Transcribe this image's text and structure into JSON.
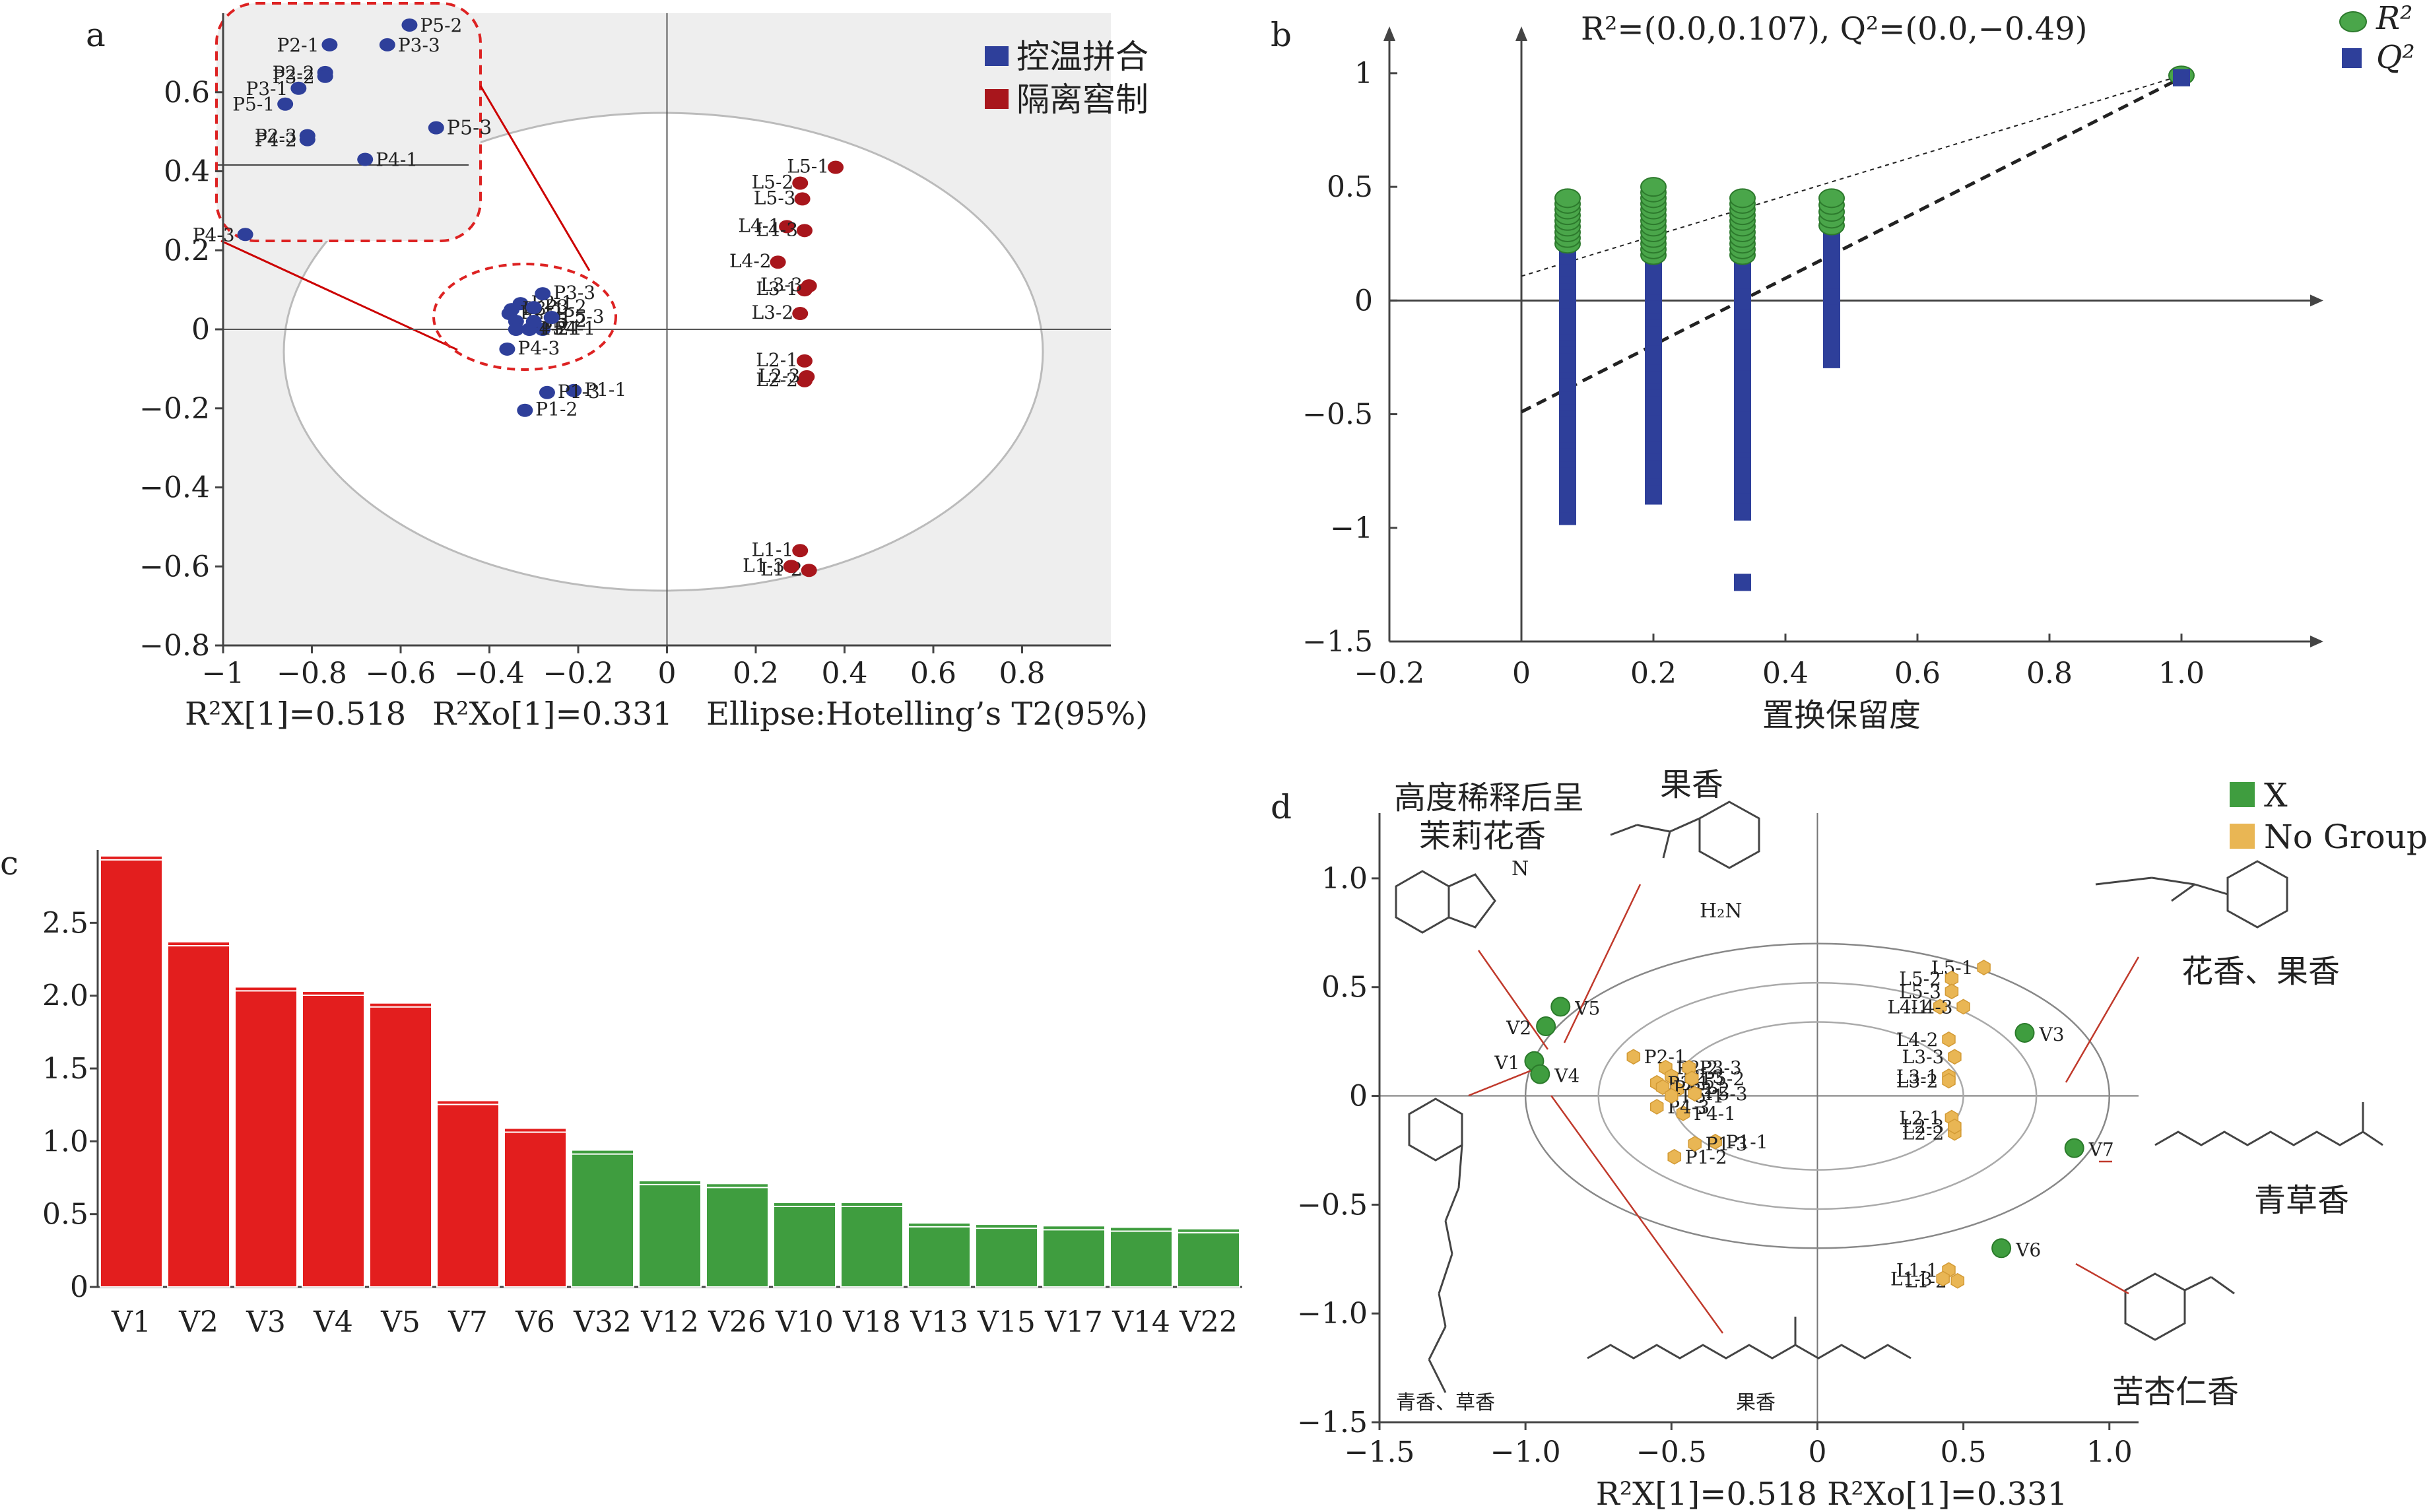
{
  "panels": {
    "a": {
      "label": "a",
      "legend": [
        {
          "name": "控温拼合",
          "color": "#2e3f9a"
        },
        {
          "name": "隔离窖制",
          "color": "#a8161c"
        }
      ],
      "footer": {
        "r2x": "R²X[1]=0.518",
        "r2xo": "R²Xo[1]=0.331",
        "ellipse": "Ellipse:Hotelling’s T2(95%)"
      }
    },
    "b": {
      "label": "b",
      "title": "R²=(0.0,0.107), Q²=(0.0,−0.49)",
      "legend": [
        "R²",
        "Q²"
      ],
      "xlabel": "置换保留度"
    },
    "c": {
      "label": "c"
    },
    "d": {
      "label": "d",
      "legend": [
        "X",
        "No Group"
      ],
      "footer": "R²X[1]=0.518 R²Xo[1]=0.331",
      "annotations": {
        "v5": [
          "高度稀释后呈",
          "茉莉花香"
        ],
        "v2": "果香",
        "v3": "花香、果香",
        "v1": "青香、草香",
        "v4": "果香",
        "v7": "青草香",
        "v6": "苦杏仁香",
        "amine": "H₂N"
      }
    }
  },
  "chart_data": [
    {
      "panel": "a",
      "type": "scatter",
      "xlim": [
        -1,
        1
      ],
      "ylim": [
        -0.8,
        0.8
      ],
      "xticks": [
        "−1",
        "−0.8",
        "−0.6",
        "−0.4",
        "−0.2",
        "0",
        "0.2",
        "0.4",
        "0.6",
        "0.8"
      ],
      "yticks": [
        "−0.8",
        "−0.6",
        "−0.4",
        "−0.2",
        "0",
        "0.2",
        "0.4",
        "0.6"
      ],
      "series": [
        {
          "name": "控温拼合",
          "points": [
            {
              "label": "P1-1",
              "x": -0.21,
              "y": -0.155
            },
            {
              "label": "P1-2",
              "x": -0.32,
              "y": -0.205
            },
            {
              "label": "P1-3",
              "x": -0.27,
              "y": -0.16
            },
            {
              "label": "P2-1",
              "x": -0.33,
              "y": 0.065
            },
            {
              "label": "P2-2",
              "x": -0.355,
              "y": 0.04
            },
            {
              "label": "P2-3",
              "x": -0.34,
              "y": 0.02
            },
            {
              "label": "P3-1",
              "x": -0.35,
              "y": 0.05
            },
            {
              "label": "P3-2",
              "x": -0.3,
              "y": 0.055
            },
            {
              "label": "P3-3",
              "x": -0.28,
              "y": 0.09
            },
            {
              "label": "P4-1",
              "x": -0.28,
              "y": 0.0
            },
            {
              "label": "P4-2",
              "x": -0.34,
              "y": 0.0
            },
            {
              "label": "P4-3",
              "x": -0.36,
              "y": -0.05
            },
            {
              "label": "P5-1",
              "x": -0.31,
              "y": 0.0
            },
            {
              "label": "P5-2",
              "x": -0.3,
              "y": 0.02
            },
            {
              "label": "P5-3",
              "x": -0.26,
              "y": 0.03
            }
          ]
        },
        {
          "name": "隔离窖制",
          "points": [
            {
              "label": "L1-1",
              "x": 0.3,
              "y": -0.56
            },
            {
              "label": "L1-2",
              "x": 0.32,
              "y": -0.61
            },
            {
              "label": "L1-3",
              "x": 0.28,
              "y": -0.6
            },
            {
              "label": "L2-1",
              "x": 0.31,
              "y": -0.08
            },
            {
              "label": "L2-2",
              "x": 0.31,
              "y": -0.13
            },
            {
              "label": "L2-3",
              "x": 0.315,
              "y": -0.12
            },
            {
              "label": "L3-1",
              "x": 0.31,
              "y": 0.1
            },
            {
              "label": "L3-2",
              "x": 0.3,
              "y": 0.04
            },
            {
              "label": "L3-3",
              "x": 0.32,
              "y": 0.11
            },
            {
              "label": "L4-1",
              "x": 0.27,
              "y": 0.26
            },
            {
              "label": "L4-2",
              "x": 0.25,
              "y": 0.17
            },
            {
              "label": "L4-3",
              "x": 0.31,
              "y": 0.25
            },
            {
              "label": "L5-1",
              "x": 0.38,
              "y": 0.41
            },
            {
              "label": "L5-2",
              "x": 0.3,
              "y": 0.37
            },
            {
              "label": "L5-3",
              "x": 0.305,
              "y": 0.33
            }
          ]
        }
      ],
      "inset_points": [
        {
          "label": "P5-2",
          "x": -0.58,
          "y": 0.77
        },
        {
          "label": "P2-1",
          "x": -0.76,
          "y": 0.72
        },
        {
          "label": "P3-3",
          "x": -0.63,
          "y": 0.72
        },
        {
          "label": "P2-2",
          "x": -0.77,
          "y": 0.65
        },
        {
          "label": "P3-2",
          "x": -0.77,
          "y": 0.64
        },
        {
          "label": "P3-1",
          "x": -0.83,
          "y": 0.61
        },
        {
          "label": "P5-1",
          "x": -0.86,
          "y": 0.57
        },
        {
          "label": "P5-3",
          "x": -0.52,
          "y": 0.51
        },
        {
          "label": "P4-2",
          "x": -0.81,
          "y": 0.48
        },
        {
          "label": "P2-3",
          "x": -0.81,
          "y": 0.49
        },
        {
          "label": "P4-1",
          "x": -0.68,
          "y": 0.43
        },
        {
          "label": "P4-3",
          "x": -0.95,
          "y": 0.24
        }
      ]
    },
    {
      "panel": "b",
      "type": "scatter",
      "xlim": [
        -0.2,
        1.2
      ],
      "ylim": [
        -1.5,
        1.2
      ],
      "xticks": [
        "−0.2",
        "0",
        "0.2",
        "0.4",
        "0.6",
        "0.8",
        "1.0"
      ],
      "yticks": [
        "−1.5",
        "−1",
        "−0.5",
        "0",
        "0.5",
        "1"
      ],
      "columns": [
        {
          "x": 0.07,
          "r2_min": 0.25,
          "r2_max": 0.47,
          "q2_min": -0.95,
          "q2_max": 0.27,
          "r2_step": 0.025,
          "q2_step": 0.028
        },
        {
          "x": 0.2,
          "r2_min": 0.2,
          "r2_max": 0.5,
          "q2_min": -0.86,
          "q2_max": 0.22,
          "r2_step": 0.025,
          "q2_step": 0.028
        },
        {
          "x": 0.335,
          "r2_min": 0.2,
          "r2_max": 0.45,
          "q2_min": -0.93,
          "q2_max": 0.2,
          "r2_step": 0.025,
          "q2_step": 0.03
        },
        {
          "x": 0.47,
          "r2_min": 0.33,
          "r2_max": 0.45,
          "q2_min": -0.26,
          "q2_max": 0.3,
          "r2_step": 0.03,
          "q2_step": 0.07
        }
      ],
      "outliers_q2": [
        {
          "x": 0.07,
          "y": -0.84
        },
        {
          "x": 0.07,
          "y": -0.78
        },
        {
          "x": 0.335,
          "y": -0.73
        },
        {
          "x": 0.335,
          "y": -0.81
        },
        {
          "x": 0.335,
          "y": -0.93
        },
        {
          "x": 0.335,
          "y": -1.24
        }
      ],
      "final_point": {
        "x": 1.0,
        "r2": 0.99,
        "q2": 0.98
      },
      "r2_line": [
        [
          0.0,
          0.107
        ],
        [
          1.0,
          0.99
        ]
      ],
      "q2_line": [
        [
          0.0,
          -0.49
        ],
        [
          1.0,
          0.98
        ]
      ]
    },
    {
      "panel": "c",
      "type": "bar",
      "categories": [
        "V1",
        "V2",
        "V3",
        "V4",
        "V5",
        "V7",
        "V6",
        "V32",
        "V12",
        "V26",
        "V10",
        "V18",
        "V13",
        "V15",
        "V17",
        "V14",
        "V22"
      ],
      "values": [
        2.96,
        2.37,
        2.06,
        2.03,
        1.95,
        1.28,
        1.09,
        0.94,
        0.73,
        0.71,
        0.58,
        0.58,
        0.44,
        0.43,
        0.42,
        0.41,
        0.4
      ],
      "colors": [
        "#e31e1e",
        "#e31e1e",
        "#e31e1e",
        "#e31e1e",
        "#e31e1e",
        "#e31e1e",
        "#e31e1e",
        "#3f9d3f",
        "#3f9d3f",
        "#3f9d3f",
        "#3f9d3f",
        "#3f9d3f",
        "#3f9d3f",
        "#3f9d3f",
        "#3f9d3f",
        "#3f9d3f",
        "#3f9d3f"
      ],
      "ylim": [
        0,
        3
      ],
      "yticks": [
        "0",
        "0.5",
        "1.0",
        "1.5",
        "2.0",
        "2.5"
      ]
    },
    {
      "panel": "d",
      "type": "scatter",
      "xlim": [
        -1.5,
        1.1
      ],
      "ylim": [
        -1.5,
        1.3
      ],
      "xticks": [
        "−1.5",
        "−1.0",
        "−0.5",
        "0",
        "0.5",
        "1.0"
      ],
      "yticks": [
        "−1.5",
        "−1.0",
        "−0.5",
        "0",
        "0.5",
        "1.0"
      ],
      "x_points": [
        {
          "label": "V1",
          "x": -0.97,
          "y": 0.16
        },
        {
          "label": "V2",
          "x": -0.93,
          "y": 0.32
        },
        {
          "label": "V3",
          "x": 0.71,
          "y": 0.29
        },
        {
          "label": "V4",
          "x": -0.95,
          "y": 0.1
        },
        {
          "label": "V5",
          "x": -0.88,
          "y": 0.41
        },
        {
          "label": "V6",
          "x": 0.63,
          "y": -0.7
        },
        {
          "label": "V7",
          "x": 0.88,
          "y": -0.24
        }
      ],
      "no_group_points": [
        {
          "label": "L1-1",
          "x": 0.45,
          "y": -0.8
        },
        {
          "label": "L1-2",
          "x": 0.48,
          "y": -0.85
        },
        {
          "label": "L1-3",
          "x": 0.43,
          "y": -0.84
        },
        {
          "label": "L2-1",
          "x": 0.46,
          "y": -0.1
        },
        {
          "label": "L2-2",
          "x": 0.47,
          "y": -0.17
        },
        {
          "label": "L2-3",
          "x": 0.47,
          "y": -0.14
        },
        {
          "label": "L3-1",
          "x": 0.45,
          "y": 0.09
        },
        {
          "label": "L3-2",
          "x": 0.45,
          "y": 0.07
        },
        {
          "label": "L3-3",
          "x": 0.47,
          "y": 0.18
        },
        {
          "label": "L4-1",
          "x": 0.42,
          "y": 0.41
        },
        {
          "label": "L4-2",
          "x": 0.45,
          "y": 0.26
        },
        {
          "label": "L4-3",
          "x": 0.5,
          "y": 0.41
        },
        {
          "label": "L5-1",
          "x": 0.57,
          "y": 0.59
        },
        {
          "label": "L5-2",
          "x": 0.46,
          "y": 0.54
        },
        {
          "label": "L5-3",
          "x": 0.46,
          "y": 0.48
        },
        {
          "label": "P1-1",
          "x": -0.35,
          "y": -0.21
        },
        {
          "label": "P1-2",
          "x": -0.49,
          "y": -0.28
        },
        {
          "label": "P1-3",
          "x": -0.42,
          "y": -0.22
        },
        {
          "label": "P2-1",
          "x": -0.63,
          "y": 0.18
        },
        {
          "label": "P2-2",
          "x": -0.52,
          "y": 0.13
        },
        {
          "label": "P2-3",
          "x": -0.5,
          "y": 0.09
        },
        {
          "label": "P3-1",
          "x": -0.55,
          "y": 0.06
        },
        {
          "label": "P3-2",
          "x": -0.48,
          "y": 0.03
        },
        {
          "label": "P3-3",
          "x": -0.44,
          "y": 0.13
        },
        {
          "label": "P4-1",
          "x": -0.46,
          "y": -0.08
        },
        {
          "label": "P4-2",
          "x": -0.53,
          "y": 0.04
        },
        {
          "label": "P4-3",
          "x": -0.55,
          "y": -0.05
        },
        {
          "label": "P5-1",
          "x": -0.5,
          "y": 0.0
        },
        {
          "label": "P5-2",
          "x": -0.43,
          "y": 0.08
        },
        {
          "label": "P5-3",
          "x": -0.42,
          "y": 0.01
        }
      ]
    }
  ]
}
